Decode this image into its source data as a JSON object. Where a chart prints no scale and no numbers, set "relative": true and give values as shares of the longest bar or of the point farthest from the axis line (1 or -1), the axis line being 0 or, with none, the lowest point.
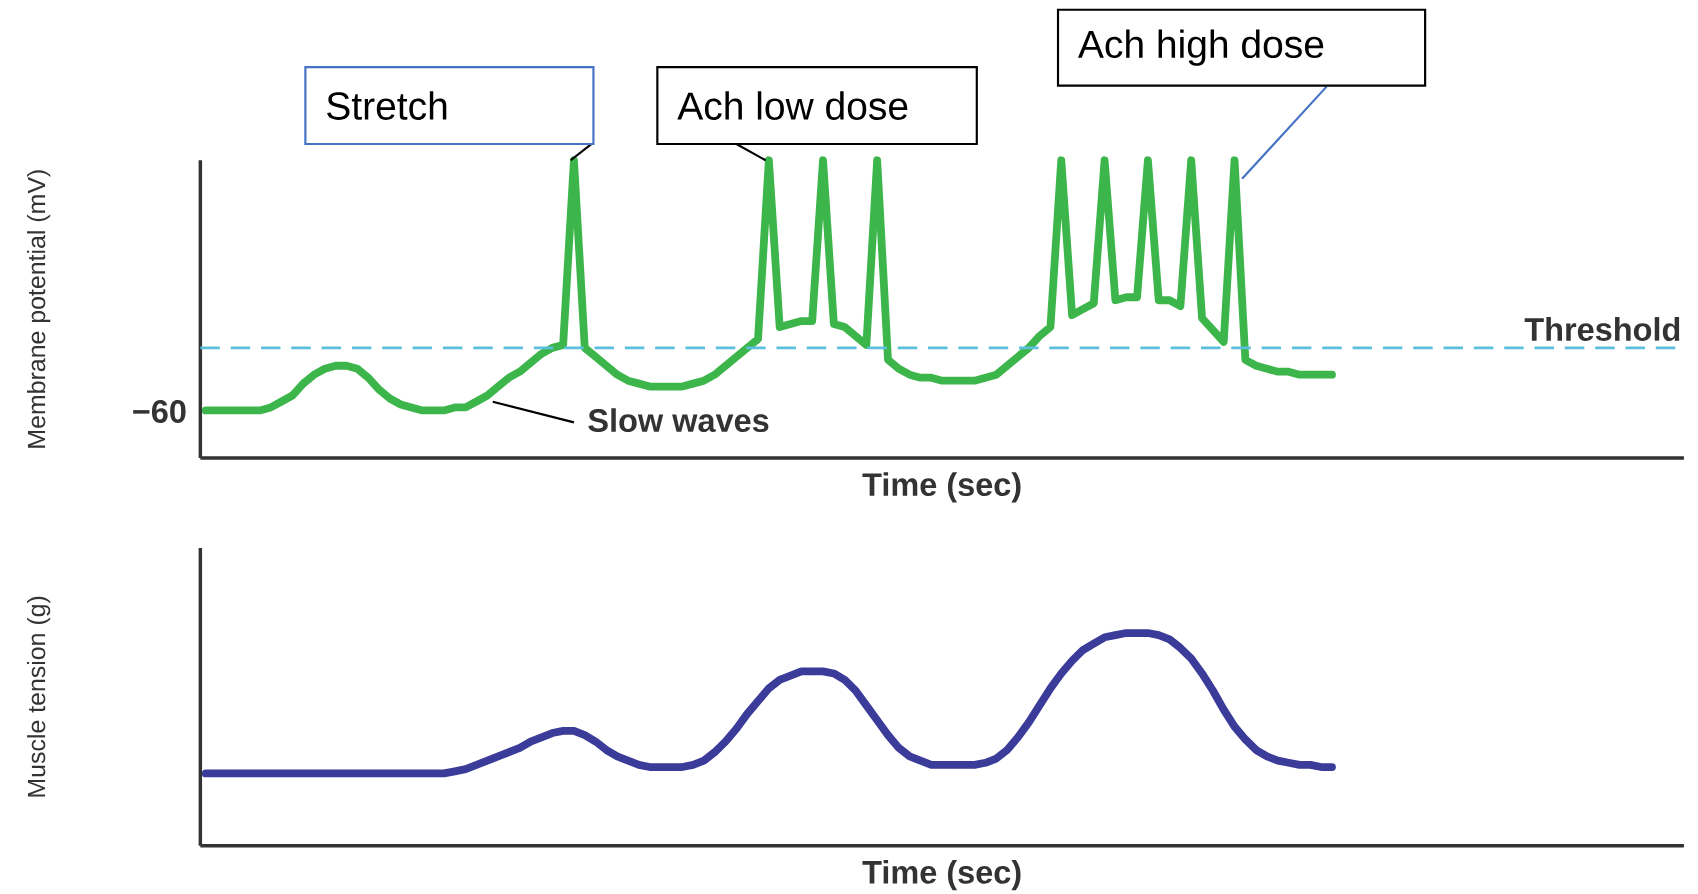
{
  "chart_data": [
    {
      "type": "line",
      "relative": true,
      "xlabel": "Time (sec)",
      "ylabel": "Membrane potential (mV)",
      "categories": [
        null,
        null,
        null,
        null,
        null,
        null,
        null,
        null,
        null,
        null,
        null,
        null,
        null,
        null,
        null,
        null,
        null,
        null,
        null,
        null,
        null,
        null,
        null,
        null,
        null,
        null,
        null,
        null,
        null,
        null,
        null,
        null,
        null,
        null,
        null,
        null,
        null,
        null,
        null,
        null,
        null,
        null,
        null,
        null,
        null,
        null,
        null,
        null,
        null,
        null,
        null,
        null,
        null,
        null,
        null,
        null,
        null,
        null,
        null,
        null,
        null,
        null,
        null,
        null,
        null,
        null,
        null,
        null,
        null,
        null,
        null,
        null,
        null,
        null,
        null,
        null,
        null,
        null,
        null,
        null,
        null,
        null,
        null,
        null,
        null,
        null,
        null,
        null,
        null,
        null,
        null,
        null,
        null,
        null,
        null,
        null,
        null,
        null,
        null,
        null,
        null,
        null,
        null,
        null,
        null
      ],
      "series": [
        {
          "color": "#3cb54a",
          "values": [
            0.16,
            0.16,
            0.16,
            0.16,
            0.16,
            0.16,
            0.17,
            0.19,
            0.21,
            0.25,
            0.28,
            0.3,
            0.31,
            0.31,
            0.3,
            0.27,
            0.23,
            0.2,
            0.18,
            0.17,
            0.16,
            0.16,
            0.16,
            0.17,
            0.17,
            0.19,
            0.21,
            0.24,
            0.27,
            0.29,
            0.32,
            0.35,
            0.37,
            0.38,
            1,
            0.37,
            0.34,
            0.31,
            0.28,
            0.26,
            0.25,
            0.24,
            0.24,
            0.24,
            0.24,
            0.25,
            0.26,
            0.28,
            0.31,
            0.34,
            0.37,
            0.4,
            1,
            0.44,
            0.45,
            0.46,
            0.46,
            1,
            0.45,
            0.44,
            0.41,
            0.38,
            1,
            0.33,
            0.3,
            0.28,
            0.27,
            0.27,
            0.26,
            0.26,
            0.26,
            0.26,
            0.27,
            0.28,
            0.31,
            0.34,
            0.37,
            0.41,
            0.44,
            1,
            0.48,
            0.5,
            0.52,
            1,
            0.53,
            0.54,
            0.54,
            1,
            0.53,
            0.53,
            0.51,
            1,
            0.47,
            0.43,
            0.39,
            1,
            0.33,
            0.31,
            0.3,
            0.29,
            0.29,
            0.28,
            0.28,
            0.28,
            0.28
          ]
        }
      ],
      "ref_lines": [
        {
          "axis": "y",
          "value": 0.37,
          "label": "Threshold",
          "color": "#5bc0de",
          "line_style": "dashed"
        }
      ],
      "annotations": [
        "−60",
        "Slow waves",
        "Stretch",
        "Ach low dose",
        "Ach high dose"
      ]
    },
    {
      "type": "line",
      "relative": true,
      "xlabel": "Time (sec)",
      "ylabel": "Muscle tension (g)",
      "categories": [
        null,
        null,
        null,
        null,
        null,
        null,
        null,
        null,
        null,
        null,
        null,
        null,
        null,
        null,
        null,
        null,
        null,
        null,
        null,
        null,
        null,
        null,
        null,
        null,
        null,
        null,
        null,
        null,
        null,
        null,
        null,
        null,
        null,
        null,
        null,
        null,
        null,
        null,
        null,
        null,
        null,
        null,
        null,
        null,
        null,
        null,
        null,
        null,
        null,
        null,
        null,
        null,
        null,
        null,
        null,
        null,
        null,
        null,
        null,
        null,
        null,
        null,
        null,
        null,
        null,
        null,
        null,
        null,
        null,
        null,
        null,
        null,
        null,
        null,
        null,
        null,
        null,
        null,
        null,
        null,
        null,
        null,
        null,
        null,
        null,
        null,
        null,
        null,
        null,
        null,
        null,
        null,
        null,
        null,
        null,
        null,
        null,
        null,
        null,
        null,
        null,
        null,
        null,
        null,
        null
      ],
      "series": [
        {
          "color": "#3b3b9a",
          "values": [
            0.34,
            0.34,
            0.34,
            0.34,
            0.34,
            0.34,
            0.34,
            0.34,
            0.34,
            0.34,
            0.34,
            0.34,
            0.34,
            0.34,
            0.34,
            0.34,
            0.34,
            0.34,
            0.34,
            0.34,
            0.34,
            0.34,
            0.34,
            0.35,
            0.36,
            0.38,
            0.4,
            0.42,
            0.44,
            0.46,
            0.49,
            0.51,
            0.53,
            0.54,
            0.54,
            0.52,
            0.49,
            0.45,
            0.42,
            0.4,
            0.38,
            0.37,
            0.37,
            0.37,
            0.37,
            0.38,
            0.4,
            0.44,
            0.49,
            0.55,
            0.62,
            0.68,
            0.74,
            0.78,
            0.8,
            0.82,
            0.82,
            0.82,
            0.81,
            0.78,
            0.73,
            0.66,
            0.59,
            0.52,
            0.46,
            0.42,
            0.4,
            0.38,
            0.38,
            0.38,
            0.38,
            0.38,
            0.39,
            0.41,
            0.45,
            0.51,
            0.58,
            0.66,
            0.74,
            0.81,
            0.87,
            0.92,
            0.95,
            0.98,
            0.99,
            1,
            1,
            1,
            0.99,
            0.97,
            0.93,
            0.88,
            0.81,
            0.73,
            0.64,
            0.56,
            0.5,
            0.45,
            0.42,
            0.4,
            0.39,
            0.38,
            0.38,
            0.37,
            0.37
          ]
        }
      ]
    }
  ]
}
